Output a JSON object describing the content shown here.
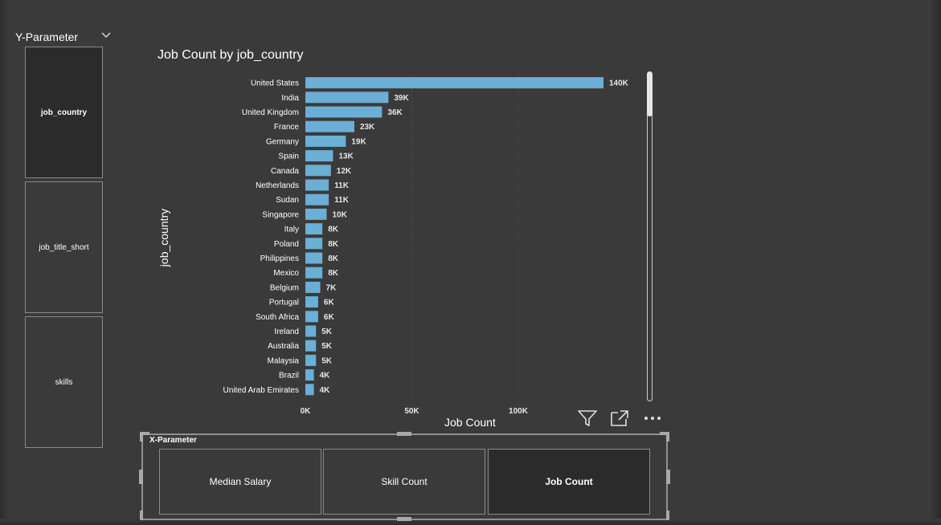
{
  "y_parameter": {
    "title": "Y-Parameter",
    "options": [
      "job_country",
      "job_title_short",
      "skills"
    ],
    "selected": "job_country"
  },
  "x_parameter": {
    "title": "X-Parameter",
    "options": [
      "Median Salary",
      "Skill Count",
      "Job Count"
    ],
    "selected": "Job Count"
  },
  "colors": {
    "bar": "#6baed6",
    "background": "#3a3a3a",
    "gridline": "#5a5a5a"
  },
  "chart_data": {
    "type": "bar",
    "orientation": "horizontal",
    "title": "Job Count by job_country",
    "xlabel": "Job Count",
    "ylabel": "job_country",
    "xlim": [
      0,
      150000
    ],
    "x_ticks": [
      0,
      50000,
      100000
    ],
    "x_tick_labels": [
      "0K",
      "50K",
      "100K"
    ],
    "grid": "vertical dotted",
    "categories": [
      "United States",
      "India",
      "United Kingdom",
      "France",
      "Germany",
      "Spain",
      "Canada",
      "Netherlands",
      "Sudan",
      "Singapore",
      "Italy",
      "Poland",
      "Philippines",
      "Mexico",
      "Belgium",
      "Portugal",
      "South Africa",
      "Ireland",
      "Australia",
      "Malaysia",
      "Brazil",
      "United Arab Emirates"
    ],
    "values": [
      140000,
      39000,
      36000,
      23000,
      19000,
      13000,
      12000,
      11000,
      11000,
      10000,
      8000,
      8000,
      8000,
      8000,
      7000,
      6000,
      6000,
      5000,
      5000,
      5000,
      4000,
      4000
    ],
    "data_labels": [
      "140K",
      "39K",
      "36K",
      "23K",
      "19K",
      "13K",
      "12K",
      "11K",
      "11K",
      "10K",
      "8K",
      "8K",
      "8K",
      "8K",
      "7K",
      "6K",
      "6K",
      "5K",
      "5K",
      "5K",
      "4K",
      "4K"
    ]
  }
}
